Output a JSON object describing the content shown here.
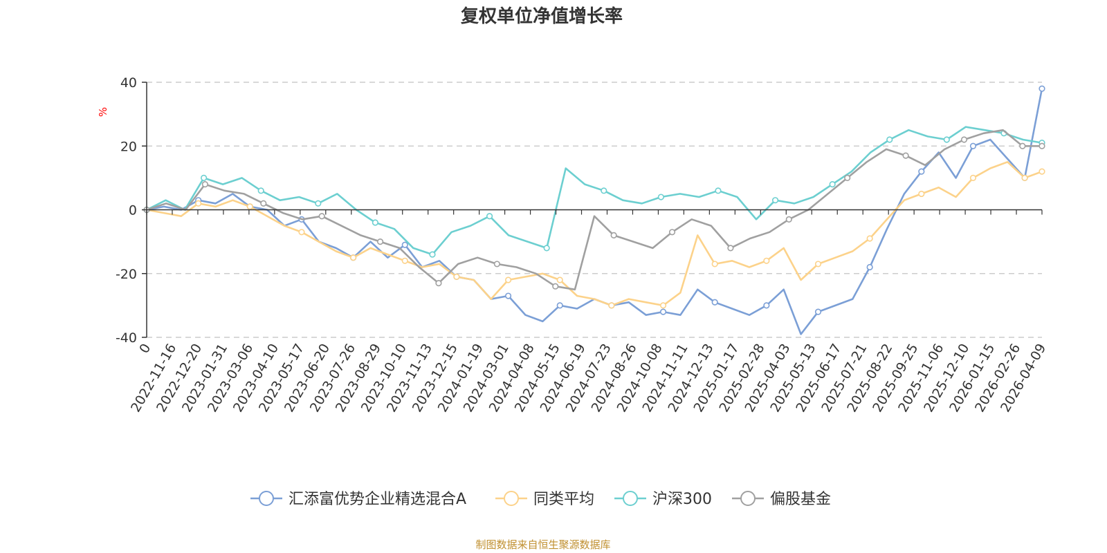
{
  "chart_data": {
    "type": "line",
    "title": "复权单位净值增长率",
    "ylabel": "%",
    "ylim": [
      -40,
      40
    ],
    "yticks": [
      40,
      20,
      0,
      -20,
      -40
    ],
    "x_tick_labels": [
      "0",
      "2022-11-16",
      "2022-12-20",
      "2023-01-31",
      "2023-03-06",
      "2023-04-10",
      "2023-05-17",
      "2023-06-20",
      "2023-07-26",
      "2023-08-29",
      "2023-10-10",
      "2023-11-13",
      "2023-12-15",
      "2024-01-19",
      "2024-03-01",
      "2024-04-08",
      "2024-05-15",
      "2024-06-19",
      "2024-07-23",
      "2024-08-26",
      "2024-10-08",
      "2024-11-11",
      "2024-12-13",
      "2025-01-17",
      "2025-02-28",
      "2025-04-03",
      "2025-05-13",
      "2025-06-17",
      "2025-07-21",
      "2025-08-22",
      "2025-09-25",
      "2025-11-06",
      "2025-12-10",
      "2026-01-15",
      "2026-02-26",
      "2026-04-09"
    ],
    "series": [
      {
        "name": "汇添富优势企业精选混合A",
        "color": "#7b9fd6",
        "values": [
          0,
          1,
          0,
          3,
          2,
          5,
          1,
          0,
          -5,
          -3,
          -10,
          -12,
          -15,
          -10,
          -15,
          -11,
          -18,
          -16,
          -21,
          -22,
          -28,
          -27,
          -33,
          -35,
          -30,
          -31,
          -28,
          -30,
          -29,
          -33,
          -32,
          -33,
          -25,
          -29,
          -31,
          -33,
          -30,
          -25,
          -39,
          -32,
          -30,
          -28,
          -18,
          -6,
          5,
          12,
          18,
          10,
          20,
          22,
          16,
          10,
          38
        ]
      },
      {
        "name": "同类平均",
        "color": "#fcd28a",
        "values": [
          0,
          -1,
          -2,
          2,
          1,
          3,
          1,
          -2,
          -5,
          -7,
          -10,
          -13,
          -15,
          -12,
          -14,
          -16,
          -18,
          -17,
          -21,
          -22,
          -28,
          -22,
          -21,
          -20,
          -22,
          -27,
          -28,
          -30,
          -28,
          -29,
          -30,
          -26,
          -8,
          -17,
          -16,
          -18,
          -16,
          -12,
          -22,
          -17,
          -15,
          -13,
          -9,
          -3,
          3,
          5,
          7,
          4,
          10,
          13,
          15,
          10,
          12
        ]
      },
      {
        "name": "沪深300",
        "color": "#6ccfd0",
        "values": [
          0,
          3,
          0,
          10,
          8,
          10,
          6,
          3,
          4,
          2,
          5,
          0,
          -4,
          -6,
          -12,
          -14,
          -7,
          -5,
          -2,
          -8,
          -10,
          -12,
          13,
          8,
          6,
          3,
          2,
          4,
          5,
          4,
          6,
          4,
          -3,
          3,
          2,
          4,
          8,
          12,
          18,
          22,
          25,
          23,
          22,
          26,
          25,
          24,
          22,
          21
        ]
      },
      {
        "name": "偏股基金",
        "color": "#a0a0a0",
        "values": [
          0,
          2,
          0,
          8,
          6,
          5,
          2,
          -1,
          -3,
          -2,
          -5,
          -8,
          -10,
          -12,
          -18,
          -23,
          -17,
          -15,
          -17,
          -18,
          -20,
          -24,
          -25,
          -2,
          -8,
          -10,
          -12,
          -7,
          -3,
          -5,
          -12,
          -9,
          -7,
          -3,
          0,
          5,
          10,
          15,
          19,
          17,
          14,
          19,
          22,
          24,
          25,
          20,
          20
        ]
      }
    ],
    "legend_position": "bottom",
    "grid": true
  },
  "source_note": "制图数据来自恒生聚源数据库"
}
